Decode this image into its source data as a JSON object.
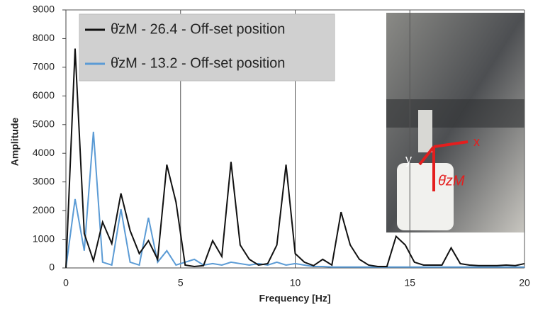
{
  "chart_data": {
    "type": "line",
    "xlabel": "Frequency [Hz]",
    "ylabel": "Amplitude",
    "x": [
      0,
      0.4,
      0.8,
      1.2,
      1.6,
      2.0,
      2.4,
      2.8,
      3.2,
      3.6,
      4.0,
      4.4,
      4.8,
      5.2,
      5.6,
      6.0,
      6.4,
      6.8,
      7.2,
      7.6,
      8.0,
      8.4,
      8.8,
      9.2,
      9.6,
      10.0,
      10.4,
      10.8,
      11.2,
      11.6,
      12.0,
      12.4,
      12.8,
      13.2,
      13.6,
      14.0,
      14.4,
      14.8,
      15.2,
      15.6,
      16.0,
      16.4,
      16.8,
      17.2,
      17.6,
      18.0,
      18.4,
      18.8,
      19.2,
      19.6,
      20.0
    ],
    "series": [
      {
        "name": "θ̇zM - 26.4 - Off-set position",
        "color": "#111111",
        "values": [
          0,
          7650,
          1200,
          250,
          1600,
          850,
          2600,
          1300,
          500,
          950,
          300,
          3600,
          2300,
          100,
          50,
          80,
          950,
          400,
          3700,
          800,
          300,
          100,
          150,
          800,
          3600,
          500,
          200,
          80,
          300,
          100,
          1950,
          800,
          300,
          100,
          50,
          50,
          1100,
          800,
          200,
          100,
          100,
          100,
          700,
          150,
          100,
          80,
          80,
          80,
          100,
          80,
          150
        ]
      },
      {
        "name": "θ̇zM - 13.2 - Off-set position",
        "color": "#5b9bd5",
        "values": [
          0,
          2400,
          600,
          4750,
          200,
          100,
          2050,
          200,
          100,
          1750,
          200,
          600,
          100,
          200,
          300,
          100,
          150,
          100,
          200,
          150,
          100,
          150,
          100,
          200,
          100,
          150,
          100,
          50,
          50,
          30,
          30,
          30,
          30,
          30,
          30,
          30,
          30,
          30,
          30,
          30,
          30,
          30,
          30,
          30,
          30,
          30,
          30,
          30,
          30,
          30,
          30
        ]
      }
    ],
    "xlim": [
      0,
      20
    ],
    "xticks": [
      0,
      5,
      10,
      15,
      20
    ],
    "ylim": [
      0,
      9000
    ],
    "yticks": [
      0,
      1000,
      2000,
      3000,
      4000,
      5000,
      6000,
      7000,
      8000,
      9000
    ],
    "grid": "x",
    "legend": "upper left",
    "annotations": [
      "x",
      "y",
      "θ̇zM"
    ]
  }
}
